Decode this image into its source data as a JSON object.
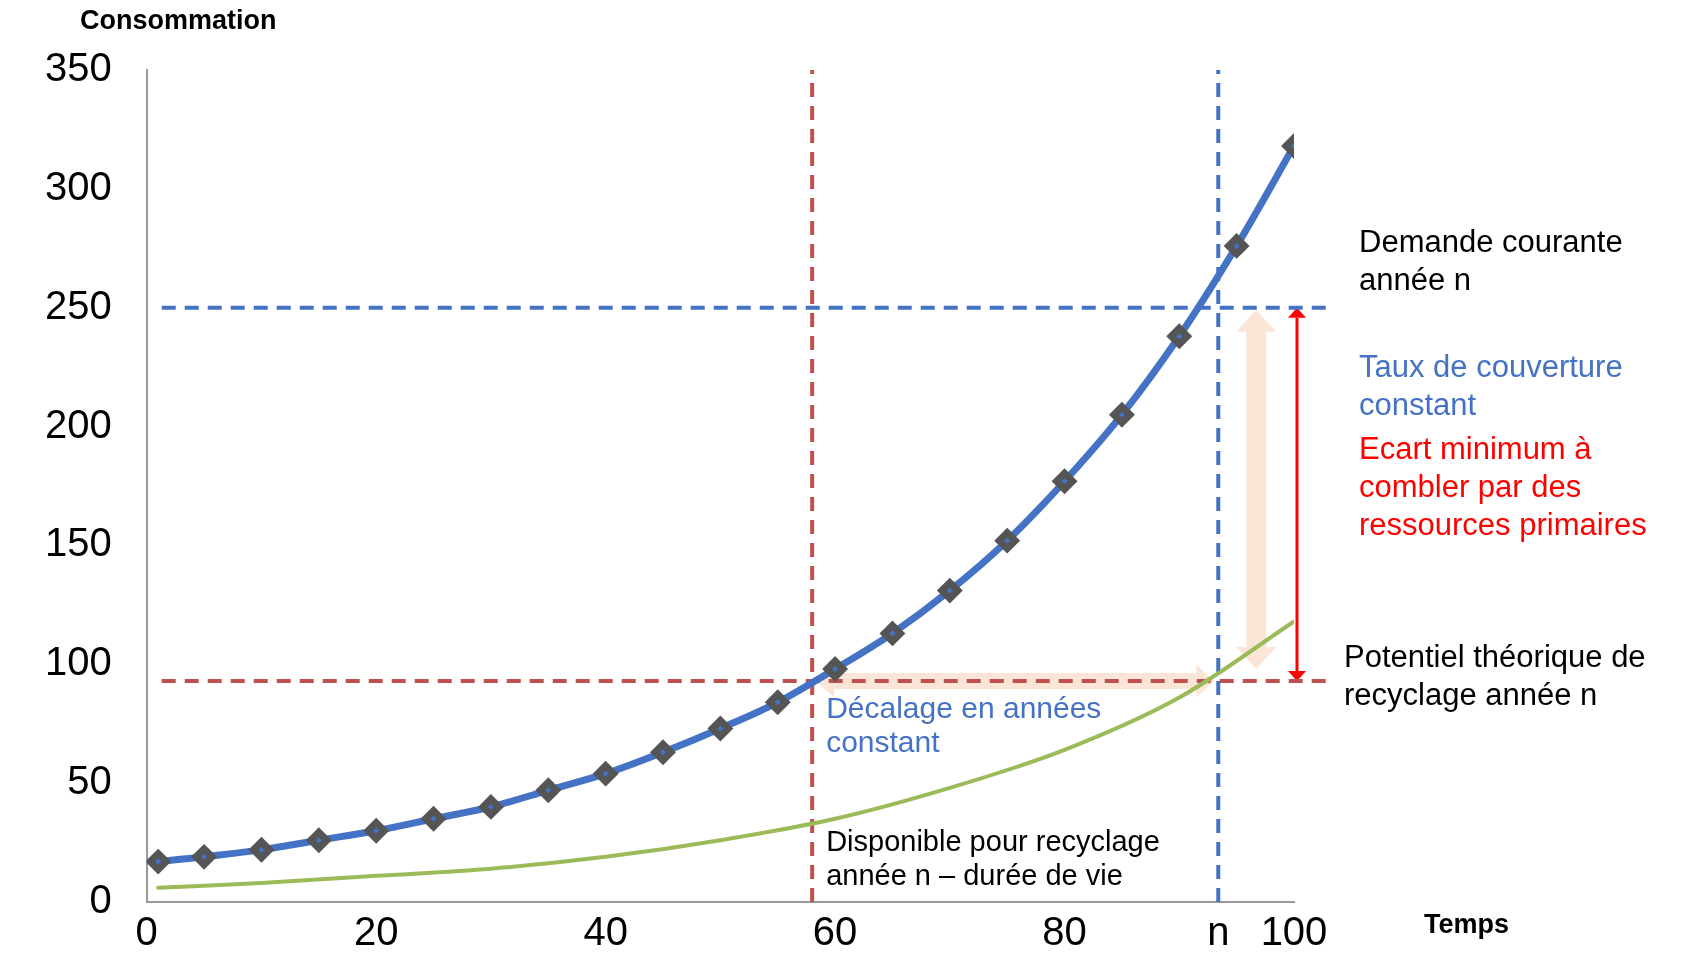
{
  "chart_data": {
    "type": "line",
    "xlabel": "Temps",
    "ylabel": "Consommation",
    "xlim": [
      0,
      100
    ],
    "ylim": [
      0,
      350
    ],
    "xticks": [
      0,
      20,
      40,
      60,
      80,
      {
        "value": 93.4,
        "label": "n"
      },
      100
    ],
    "yticks": [
      0,
      50,
      100,
      150,
      200,
      250,
      300,
      350
    ],
    "grid": false,
    "legend": false,
    "series": [
      {
        "color": "#4472c4",
        "marker": "diamond",
        "x": [
          1,
          5,
          10,
          15,
          20,
          25,
          30,
          35,
          40,
          45,
          50,
          55,
          60,
          65,
          70,
          75,
          80,
          85,
          90,
          95,
          100
        ],
        "values": [
          17,
          19,
          22,
          26,
          30,
          35,
          40,
          47,
          54,
          63,
          73,
          84,
          98,
          113,
          131,
          152,
          177,
          205,
          238,
          276,
          318
        ]
      },
      {
        "color": "#9bbb59",
        "marker": "none",
        "x": [
          1,
          10,
          20,
          30,
          40,
          50,
          60,
          70,
          80,
          90,
          100
        ],
        "values": [
          6,
          8,
          11,
          14,
          19,
          26,
          35,
          48,
          64,
          86,
          118
        ]
      }
    ],
    "ref_lines": [
      {
        "axis": "y",
        "value": 250,
        "label": "Demande courante année n",
        "color": "#4472c4",
        "line_style": "dashed"
      },
      {
        "axis": "y",
        "value": 93,
        "label": "Potentiel théorique de recyclage année n",
        "color": "#c0504d",
        "line_style": "dashed"
      },
      {
        "axis": "x",
        "value": 58,
        "label": "Disponible pour recyclage année n – durée de vie",
        "color": "#c0504d",
        "line_style": "dashed"
      },
      {
        "axis": "x",
        "value": 93.4,
        "color": "#4472c4",
        "line_style": "dashed"
      }
    ],
    "annotations": [
      "Taux de couverture constant",
      "Ecart minimum à combler par des ressources primaires",
      "Décalage en années constant"
    ]
  }
}
